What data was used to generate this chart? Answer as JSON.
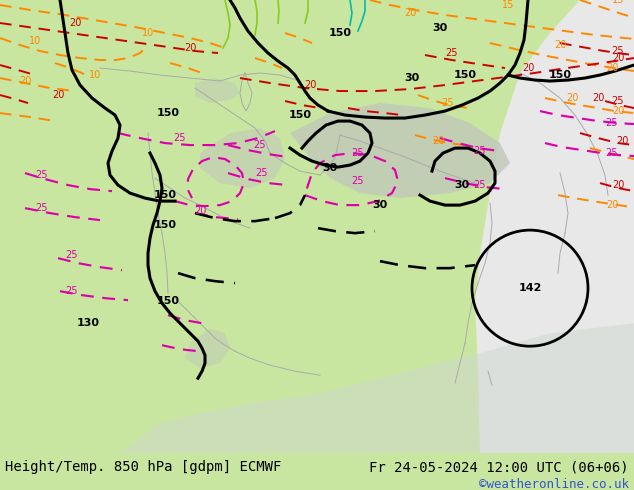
{
  "title_left": "Height/Temp. 850 hPa [gdpm] ECMWF",
  "title_right": "Fr 24-05-2024 12:00 UTC (06+06)",
  "credit": "©weatheronline.co.uk",
  "fig_width": 6.34,
  "fig_height": 4.9,
  "dpi": 100,
  "land_green": "#c8e6a0",
  "land_bright": "#ccee99",
  "mountain_gray": "#c0c8b8",
  "sea_gray": "#d8d8d8",
  "sea_light": "#e8e8e8",
  "border_gray": "#aaaaaa",
  "bottom_bar_color": "#ffffff",
  "bottom_text_color": "#000000",
  "credit_color": "#3355cc",
  "orange_color": "#ff8800",
  "red_color": "#cc0000",
  "pink_color": "#dd00aa",
  "black_lw": 2.2,
  "dashed_lw": 1.4,
  "label_fontsize": 10,
  "credit_fontsize": 9,
  "contour_fontsize": 7
}
